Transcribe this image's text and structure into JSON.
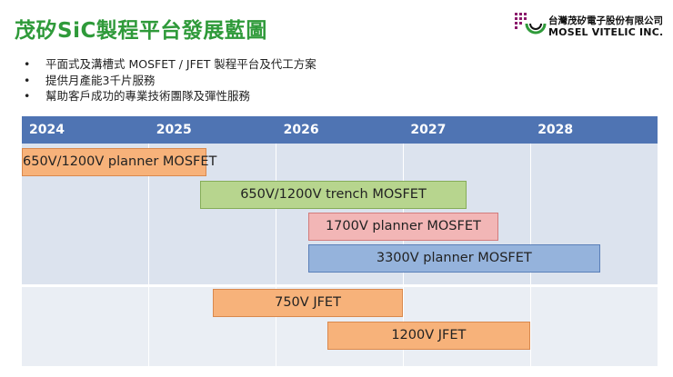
{
  "header": {
    "title": "茂矽SiC製程平台發展藍圖"
  },
  "logo": {
    "company_cn": "台灣茂矽電子股份有限公司",
    "company_en": "MOSEL VITELIC INC.",
    "mark_color": "#8b1a6b"
  },
  "bullets": [
    "平面式及溝槽式 MOSFET / JFET 製程平台及代工方案",
    "提供月產能3千片服務",
    "幫助客戶成功的專業技術團隊及彈性服務"
  ],
  "timeline": {
    "years": [
      "2024",
      "2025",
      "2026",
      "2027",
      "2028"
    ],
    "header_color": "#4f74b3",
    "bars": [
      {
        "label": "650V/1200V planner MOSFET",
        "start": 2024.0,
        "end": 2025.45,
        "color": "#f7b27a",
        "border": "#d9894e"
      },
      {
        "label": "650V/1200V trench MOSFET",
        "start": 2025.4,
        "end": 2027.5,
        "color": "#b7d58e",
        "border": "#86ad58"
      },
      {
        "label": "1700V planner MOSFET",
        "start": 2026.25,
        "end": 2027.75,
        "color": "#f2b6b6",
        "border": "#d27c7c"
      },
      {
        "label": "3300V planner MOSFET",
        "start": 2026.25,
        "end": 2028.55,
        "color": "#95b3dc",
        "border": "#5a7fb8"
      },
      {
        "label": "750V JFET",
        "start": 2025.5,
        "end": 2027.0,
        "color": "#f7b27a",
        "border": "#d9894e"
      },
      {
        "label": "1200V JFET",
        "start": 2026.4,
        "end": 2028.0,
        "color": "#f7b27a",
        "border": "#d9894e"
      }
    ]
  }
}
